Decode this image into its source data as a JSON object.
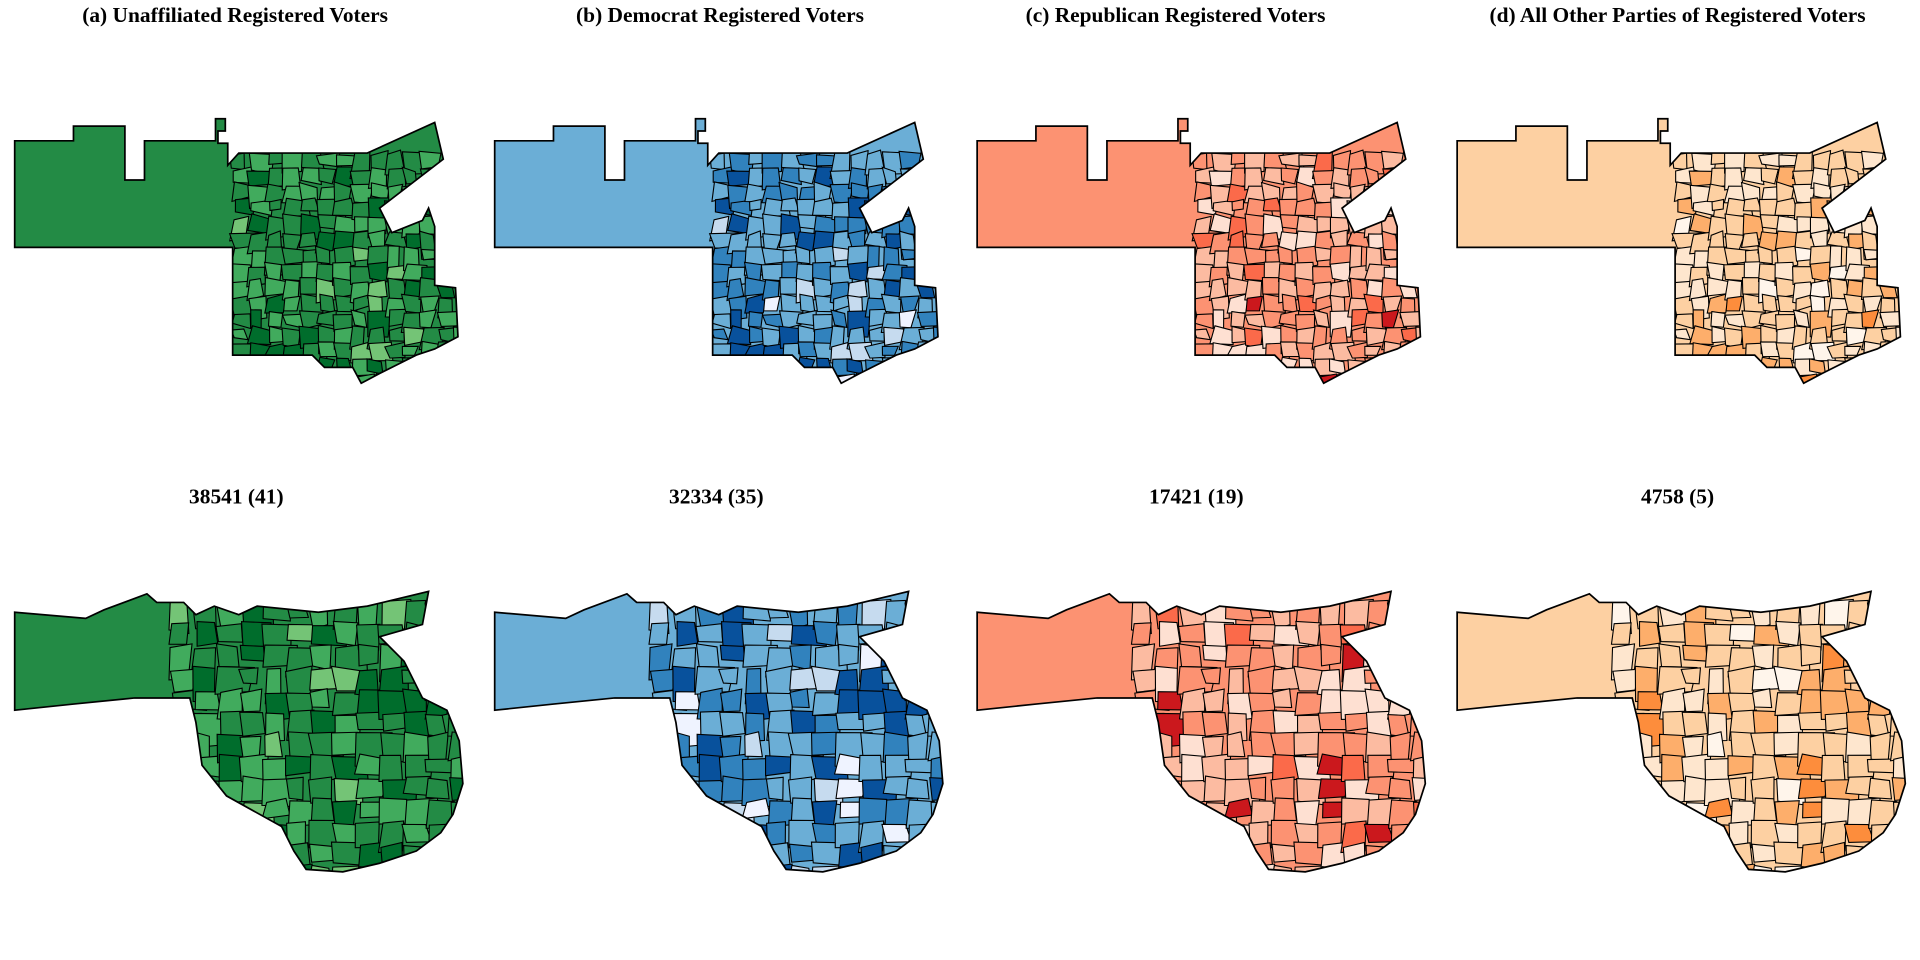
{
  "panels": [
    {
      "title": "(a) Unaffiliated Registered Voters",
      "count_label": "38541 (41)",
      "palette": [
        "#238b45",
        "#41ab5d",
        "#006d2c",
        "#238b45",
        "#74c476",
        "#41ab5d"
      ]
    },
    {
      "title": "(b) Democrat Registered Voters",
      "count_label": "32334 (35)",
      "palette": [
        "#6baed6",
        "#3182bd",
        "#08519c",
        "#6baed6",
        "#c6dbef",
        "#eff3ff"
      ]
    },
    {
      "title": "(c) Republican Registered Voters",
      "count_label": "17421 (19)",
      "palette": [
        "#fc9272",
        "#fcbba1",
        "#fee0d2",
        "#fb6a4a",
        "#fcbba1",
        "#cb181d"
      ]
    },
    {
      "title": "(d) All Other Parties of Registered Voters",
      "count_label": "4758 (5)",
      "palette": [
        "#fdd0a2",
        "#fee6ce",
        "#fdae6b",
        "#fdd0a2",
        "#fff5eb",
        "#fd8d3c"
      ]
    }
  ]
}
